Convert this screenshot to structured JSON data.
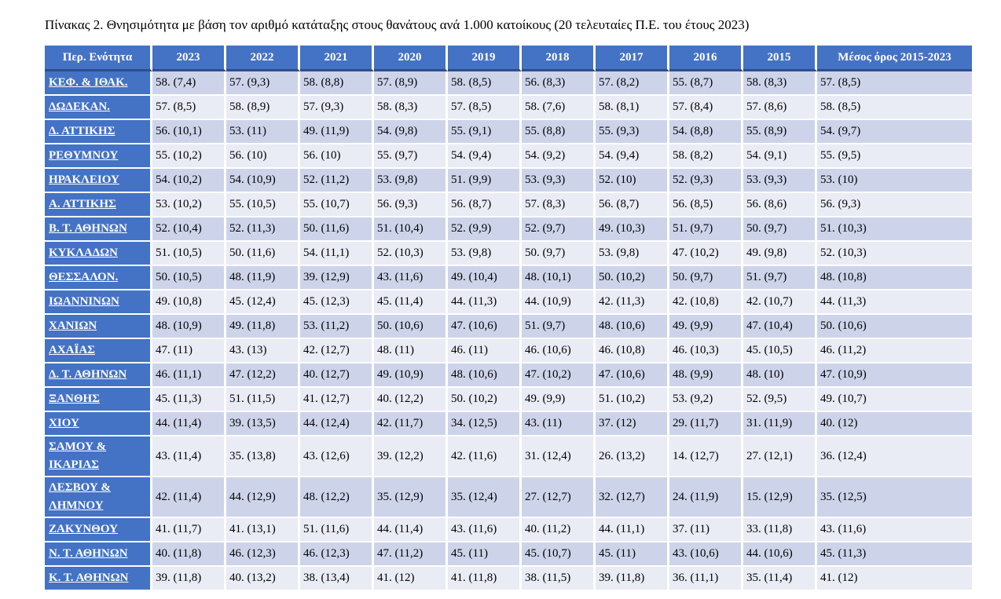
{
  "page": {
    "title": "Πίνακας 2. Θνησιμότητα με βάση τον αριθμό κατάταξης στους θανάτους ανά 1.000 κατοίκους (20 τελευταίες Π.Ε. του έτους 2023)"
  },
  "colors": {
    "header_bg": "#4472C4",
    "header_rule": "#2E4D8F",
    "band_dark": "#CDD4EA",
    "band_light": "#E9EBF5",
    "header_text": "#FFFFFF",
    "body_text": "#000000"
  },
  "table": {
    "columns": [
      "Περ. Ενότητα",
      "2023",
      "2022",
      "2021",
      "2020",
      "2019",
      "2018",
      "2017",
      "2016",
      "2015",
      "Μέσος όρος 2015-2023"
    ],
    "rows": [
      {
        "region": "ΚΕΦ. & ΙΘΑΚ.",
        "values": [
          "58. (7,4)",
          "57. (9,3)",
          "58. (8,8)",
          "57. (8,9)",
          "58. (8,5)",
          "56. (8,3)",
          "57. (8,2)",
          "55. (8,7)",
          "58. (8,3)",
          "57. (8,5)"
        ]
      },
      {
        "region": "ΔΩΔΕΚΑΝ.",
        "values": [
          "57. (8,5)",
          "58. (8,9)",
          "57. (9,3)",
          "58. (8,3)",
          "57. (8,5)",
          "58. (7,6)",
          "58. (8,1)",
          "57. (8,4)",
          "57. (8,6)",
          "58. (8,5)"
        ]
      },
      {
        "region": "Δ. ΑΤΤΙΚΗΣ",
        "values": [
          "56. (10,1)",
          "53. (11)",
          "49. (11,9)",
          "54. (9,8)",
          "55. (9,1)",
          "55. (8,8)",
          "55. (9,3)",
          "54. (8,8)",
          "55. (8,9)",
          "54. (9,7)"
        ]
      },
      {
        "region": "ΡΕΘΥΜΝΟΥ",
        "values": [
          "55. (10,2)",
          "56. (10)",
          "56. (10)",
          "55. (9,7)",
          "54. (9,4)",
          "54. (9,2)",
          "54. (9,4)",
          "58. (8,2)",
          "54. (9,1)",
          "55. (9,5)"
        ]
      },
      {
        "region": "ΗΡΑΚΛΕΙΟΥ",
        "values": [
          "54. (10,2)",
          "54. (10,9)",
          "52. (11,2)",
          "53. (9,8)",
          "51. (9,9)",
          "53. (9,3)",
          "52. (10)",
          "52. (9,3)",
          "53. (9,3)",
          "53. (10)"
        ]
      },
      {
        "region": "Α. ΑΤΤΙΚΗΣ",
        "values": [
          "53. (10,2)",
          "55. (10,5)",
          "55. (10,7)",
          "56. (9,3)",
          "56. (8,7)",
          "57. (8,3)",
          "56. (8,7)",
          "56. (8,5)",
          "56. (8,6)",
          "56. (9,3)"
        ]
      },
      {
        "region": "Β. Τ. ΑΘΗΝΩΝ",
        "values": [
          "52. (10,4)",
          "52. (11,3)",
          "50. (11,6)",
          "51. (10,4)",
          "52. (9,9)",
          "52. (9,7)",
          "49. (10,3)",
          "51. (9,7)",
          "50. (9,7)",
          "51. (10,3)"
        ]
      },
      {
        "region": "ΚΥΚΛΑΔΩΝ",
        "values": [
          "51. (10,5)",
          "50. (11,6)",
          "54. (11,1)",
          "52. (10,3)",
          "53. (9,8)",
          "50. (9,7)",
          "53. (9,8)",
          "47. (10,2)",
          "49. (9,8)",
          "52. (10,3)"
        ]
      },
      {
        "region": "ΘΕΣΣΑΛΟΝ.",
        "values": [
          "50. (10,5)",
          "48. (11,9)",
          "39. (12,9)",
          "43. (11,6)",
          "49. (10,4)",
          "48. (10,1)",
          "50. (10,2)",
          "50. (9,7)",
          "51. (9,7)",
          "48. (10,8)"
        ]
      },
      {
        "region": "ΙΩΑΝΝΙΝΩΝ",
        "values": [
          "49. (10,8)",
          "45. (12,4)",
          "45. (12,3)",
          "45. (11,4)",
          "44. (11,3)",
          "44. (10,9)",
          "42. (11,3)",
          "42. (10,8)",
          "42. (10,7)",
          "44. (11,3)"
        ]
      },
      {
        "region": "ΧΑΝΙΩΝ",
        "values": [
          "48. (10,9)",
          "49. (11,8)",
          "53. (11,2)",
          "50. (10,6)",
          "47. (10,6)",
          "51. (9,7)",
          "48. (10,6)",
          "49. (9,9)",
          "47. (10,4)",
          "50. (10,6)"
        ]
      },
      {
        "region": "ΑΧΑΪΑΣ",
        "values": [
          "47. (11)",
          "43. (13)",
          "42. (12,7)",
          "48. (11)",
          "46. (11)",
          "46. (10,6)",
          "46. (10,8)",
          "46. (10,3)",
          "45. (10,5)",
          "46. (11,2)"
        ]
      },
      {
        "region": "Δ. Τ. ΑΘΗΝΩΝ",
        "values": [
          "46. (11,1)",
          "47. (12,2)",
          "40. (12,7)",
          "49. (10,9)",
          "48. (10,6)",
          "47. (10,2)",
          "47. (10,6)",
          "48. (9,9)",
          "48. (10)",
          "47. (10,9)"
        ]
      },
      {
        "region": "ΞΑΝΘΗΣ",
        "values": [
          "45. (11,3)",
          "51. (11,5)",
          "41. (12,7)",
          "40. (12,2)",
          "50. (10,2)",
          "49. (9,9)",
          "51. (10,2)",
          "53. (9,2)",
          "52. (9,5)",
          "49. (10,7)"
        ]
      },
      {
        "region": "ΧΙΟΥ",
        "values": [
          "44. (11,4)",
          "39. (13,5)",
          "44. (12,4)",
          "42. (11,7)",
          "34. (12,5)",
          "43. (11)",
          "37. (12)",
          "29. (11,7)",
          "31. (11,9)",
          "40. (12)"
        ]
      },
      {
        "region": "ΣΑΜΟΥ & ΙΚΑΡΙΑΣ",
        "values": [
          "43. (11,4)",
          "35. (13,8)",
          "43. (12,6)",
          "39. (12,2)",
          "42. (11,6)",
          "31. (12,4)",
          "26. (13,2)",
          "14. (12,7)",
          "27. (12,1)",
          "36. (12,4)"
        ]
      },
      {
        "region": "ΛΕΣΒΟΥ & ΛΗΜΝΟΥ",
        "values": [
          "42. (11,4)",
          "44. (12,9)",
          "48. (12,2)",
          "35. (12,9)",
          "35. (12,4)",
          "27. (12,7)",
          "32. (12,7)",
          "24. (11,9)",
          "15. (12,9)",
          "35. (12,5)"
        ]
      },
      {
        "region": "ΖΑΚΥΝΘΟΥ",
        "values": [
          "41. (11,7)",
          "41. (13,1)",
          "51. (11,6)",
          "44. (11,4)",
          "43. (11,6)",
          "40. (11,2)",
          "44. (11,1)",
          "37. (11)",
          "33. (11,8)",
          "43. (11,6)"
        ]
      },
      {
        "region": "Ν. Τ. ΑΘΗΝΩΝ",
        "values": [
          "40. (11,8)",
          "46. (12,3)",
          "46. (12,3)",
          "47. (11,2)",
          "45. (11)",
          "45. (10,7)",
          "45. (11)",
          "43. (10,6)",
          "44. (10,6)",
          "45. (11,3)"
        ]
      },
      {
        "region": "Κ. Τ. ΑΘΗΝΩΝ",
        "values": [
          "39. (11,8)",
          "40. (13,2)",
          "38. (13,4)",
          "41. (12)",
          "41. (11,8)",
          "38. (11,5)",
          "39. (11,8)",
          "36. (11,1)",
          "35. (11,4)",
          "41. (12)"
        ]
      }
    ]
  }
}
